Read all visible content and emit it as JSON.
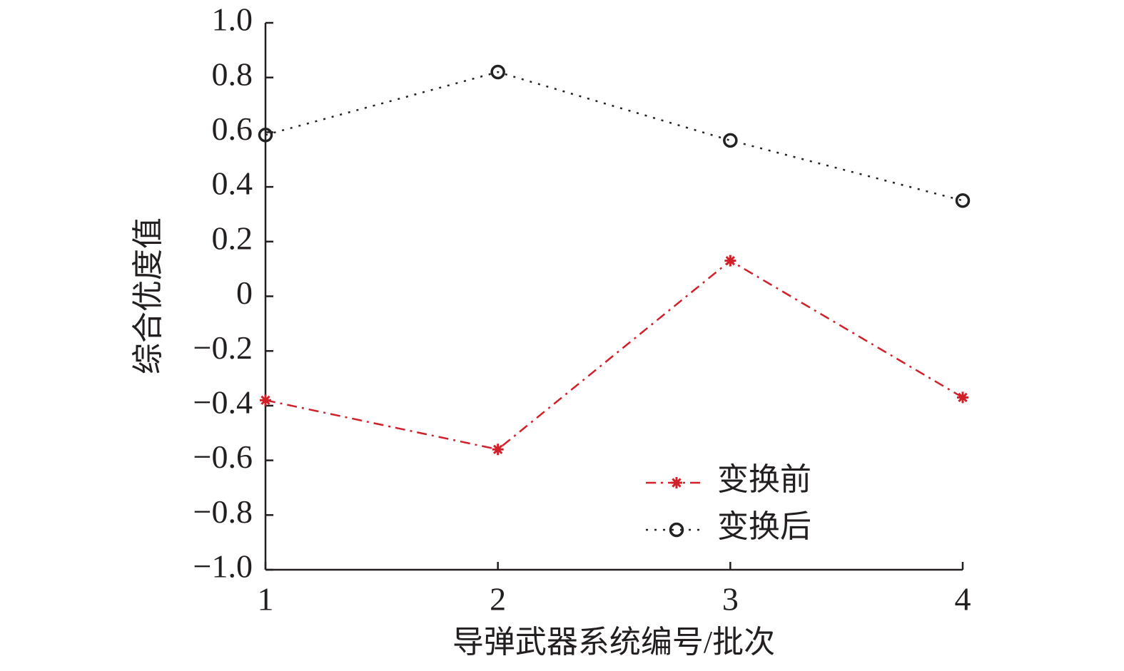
{
  "chart_data": {
    "type": "line",
    "x_label": "导弹武器系统编号/批次",
    "y_label": "综合优度值",
    "x": [
      1,
      2,
      3,
      4
    ],
    "xlim": [
      1,
      4
    ],
    "xticks": [
      1,
      2,
      3,
      4
    ],
    "ylim": [
      -1,
      1
    ],
    "yticks": [
      {
        "value": -1,
        "label": "−1.0"
      },
      {
        "value": -0.8,
        "label": "−0.8"
      },
      {
        "value": -0.6,
        "label": "−0.6"
      },
      {
        "value": -0.4,
        "label": "−0.4"
      },
      {
        "value": -0.2,
        "label": "−0.2"
      },
      0,
      0.2,
      0.4,
      0.6,
      0.8,
      {
        "value": 1,
        "label": "1.0"
      }
    ],
    "legend_position": "lower right",
    "series": [
      {
        "name": "变换前",
        "color": "#d0202a",
        "line_style": "dashdot",
        "marker": "asterisk",
        "values": [
          -0.38,
          -0.56,
          0.13,
          -0.37
        ]
      },
      {
        "name": "变换后",
        "color": "#222222",
        "line_style": "dotted",
        "marker": "circle",
        "values": [
          0.59,
          0.82,
          0.57,
          0.35
        ]
      }
    ]
  }
}
